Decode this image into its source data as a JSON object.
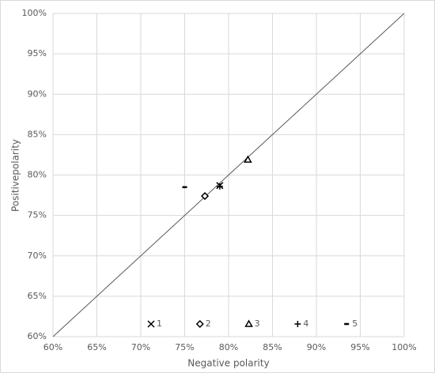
{
  "chart_data": {
    "type": "scatter",
    "xlabel": "Negative polarity",
    "ylabel": "Positivepolarity",
    "xlim": [
      60,
      100
    ],
    "ylim": [
      60,
      100
    ],
    "xticks": [
      {
        "value": 60,
        "label": "60%"
      },
      {
        "value": 65,
        "label": "65%"
      },
      {
        "value": 70,
        "label": "70%"
      },
      {
        "value": 75,
        "label": "75%"
      },
      {
        "value": 80,
        "label": "80%"
      },
      {
        "value": 85,
        "label": "85%"
      },
      {
        "value": 90,
        "label": "90%"
      },
      {
        "value": 95,
        "label": "95%"
      },
      {
        "value": 100,
        "label": "100%"
      }
    ],
    "yticks": [
      {
        "value": 60,
        "label": "60%"
      },
      {
        "value": 65,
        "label": "65%"
      },
      {
        "value": 70,
        "label": "70%"
      },
      {
        "value": 75,
        "label": "75%"
      },
      {
        "value": 80,
        "label": "80%"
      },
      {
        "value": 85,
        "label": "85%"
      },
      {
        "value": 90,
        "label": "90%"
      },
      {
        "value": 95,
        "label": "95%"
      },
      {
        "value": 100,
        "label": "100%"
      }
    ],
    "grid": true,
    "diagonal": true,
    "legend": "bottom",
    "series": [
      {
        "name": "1",
        "marker": "x",
        "color": "#000000",
        "x": [
          79
        ],
        "values": [
          78.7
        ]
      },
      {
        "name": "2",
        "marker": "diamond",
        "color": "#000000",
        "x": [
          77.3
        ],
        "values": [
          77.4
        ]
      },
      {
        "name": "3",
        "marker": "triangle",
        "color": "#000000",
        "x": [
          82.2
        ],
        "values": [
          81.9
        ]
      },
      {
        "name": "4",
        "marker": "plus",
        "color": "#000000",
        "x": [
          79
        ],
        "values": [
          78.6
        ]
      },
      {
        "name": "5",
        "marker": "dash",
        "color": "#000000",
        "x": [
          75
        ],
        "values": [
          78.5
        ]
      }
    ]
  }
}
